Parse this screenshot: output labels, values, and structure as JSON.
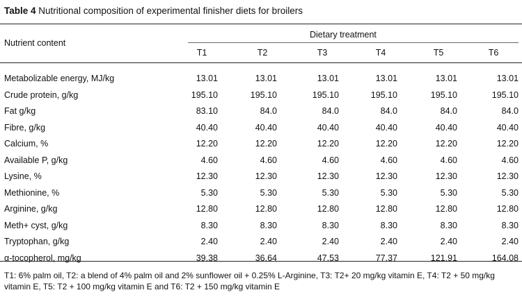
{
  "caption": {
    "label": "Table 4",
    "title": " Nutritional composition of experimental finisher diets for broilers"
  },
  "header": {
    "row_label": "Nutrient content",
    "group": "Dietary treatment",
    "columns": [
      "T1",
      "T2",
      "T3",
      "T4",
      "T5",
      "T6"
    ]
  },
  "rows": [
    {
      "label": "Metabolizable energy, MJ/kg",
      "values": [
        "13.01",
        "13.01",
        "13.01",
        "13.01",
        "13.01",
        "13.01"
      ]
    },
    {
      "label": "Crude protein, g/kg",
      "values": [
        "195.10",
        "195.10",
        "195.10",
        "195.10",
        "195.10",
        "195.10"
      ]
    },
    {
      "label": "Fat g/kg",
      "values": [
        "83.10",
        "84.0",
        "84.0",
        "84.0",
        "84.0",
        "84.0"
      ]
    },
    {
      "label": "Fibre, g/kg",
      "values": [
        "40.40",
        "40.40",
        "40.40",
        "40.40",
        "40.40",
        "40.40"
      ]
    },
    {
      "label": "Calcium, %",
      "values": [
        "12.20",
        "12.20",
        "12.20",
        "12.20",
        "12.20",
        "12.20"
      ]
    },
    {
      "label": "Available P, g/kg",
      "values": [
        "4.60",
        "4.60",
        "4.60",
        "4.60",
        "4.60",
        "4.60"
      ]
    },
    {
      "label": "Lysine, %",
      "values": [
        "12.30",
        "12.30",
        "12.30",
        "12.30",
        "12.30",
        "12.30"
      ]
    },
    {
      "label": "Methionine, %",
      "values": [
        "5.30",
        "5.30",
        "5.30",
        "5.30",
        "5.30",
        "5.30"
      ]
    },
    {
      "label": "Arginine, g/kg",
      "values": [
        "12.80",
        "12.80",
        "12.80",
        "12.80",
        "12.80",
        "12.80"
      ]
    },
    {
      "label": "Meth+ cyst, g/kg",
      "values": [
        "8.30",
        "8.30",
        "8.30",
        "8.30",
        "8.30",
        "8.30"
      ]
    },
    {
      "label": "Tryptophan, g/kg",
      "values": [
        "2.40",
        "2.40",
        "2.40",
        "2.40",
        "2.40",
        "2.40"
      ]
    },
    {
      "label": "α-tocopherol, mg/kg",
      "values": [
        "39.38",
        "36.64",
        "47.53",
        "77.37",
        "121.91",
        "164.08"
      ]
    }
  ],
  "footnote": "T1: 6% palm oil, T2: a blend of 4% palm oil and 2% sunflower oil + 0.25% L-Arginine, T3: T2+ 20 mg/kg vitamin E, T4: T2 + 50 mg/kg vitamin E, T5: T2 + 100 mg/kg vitamin E and T6: T2 + 150 mg/kg vitamin E"
}
